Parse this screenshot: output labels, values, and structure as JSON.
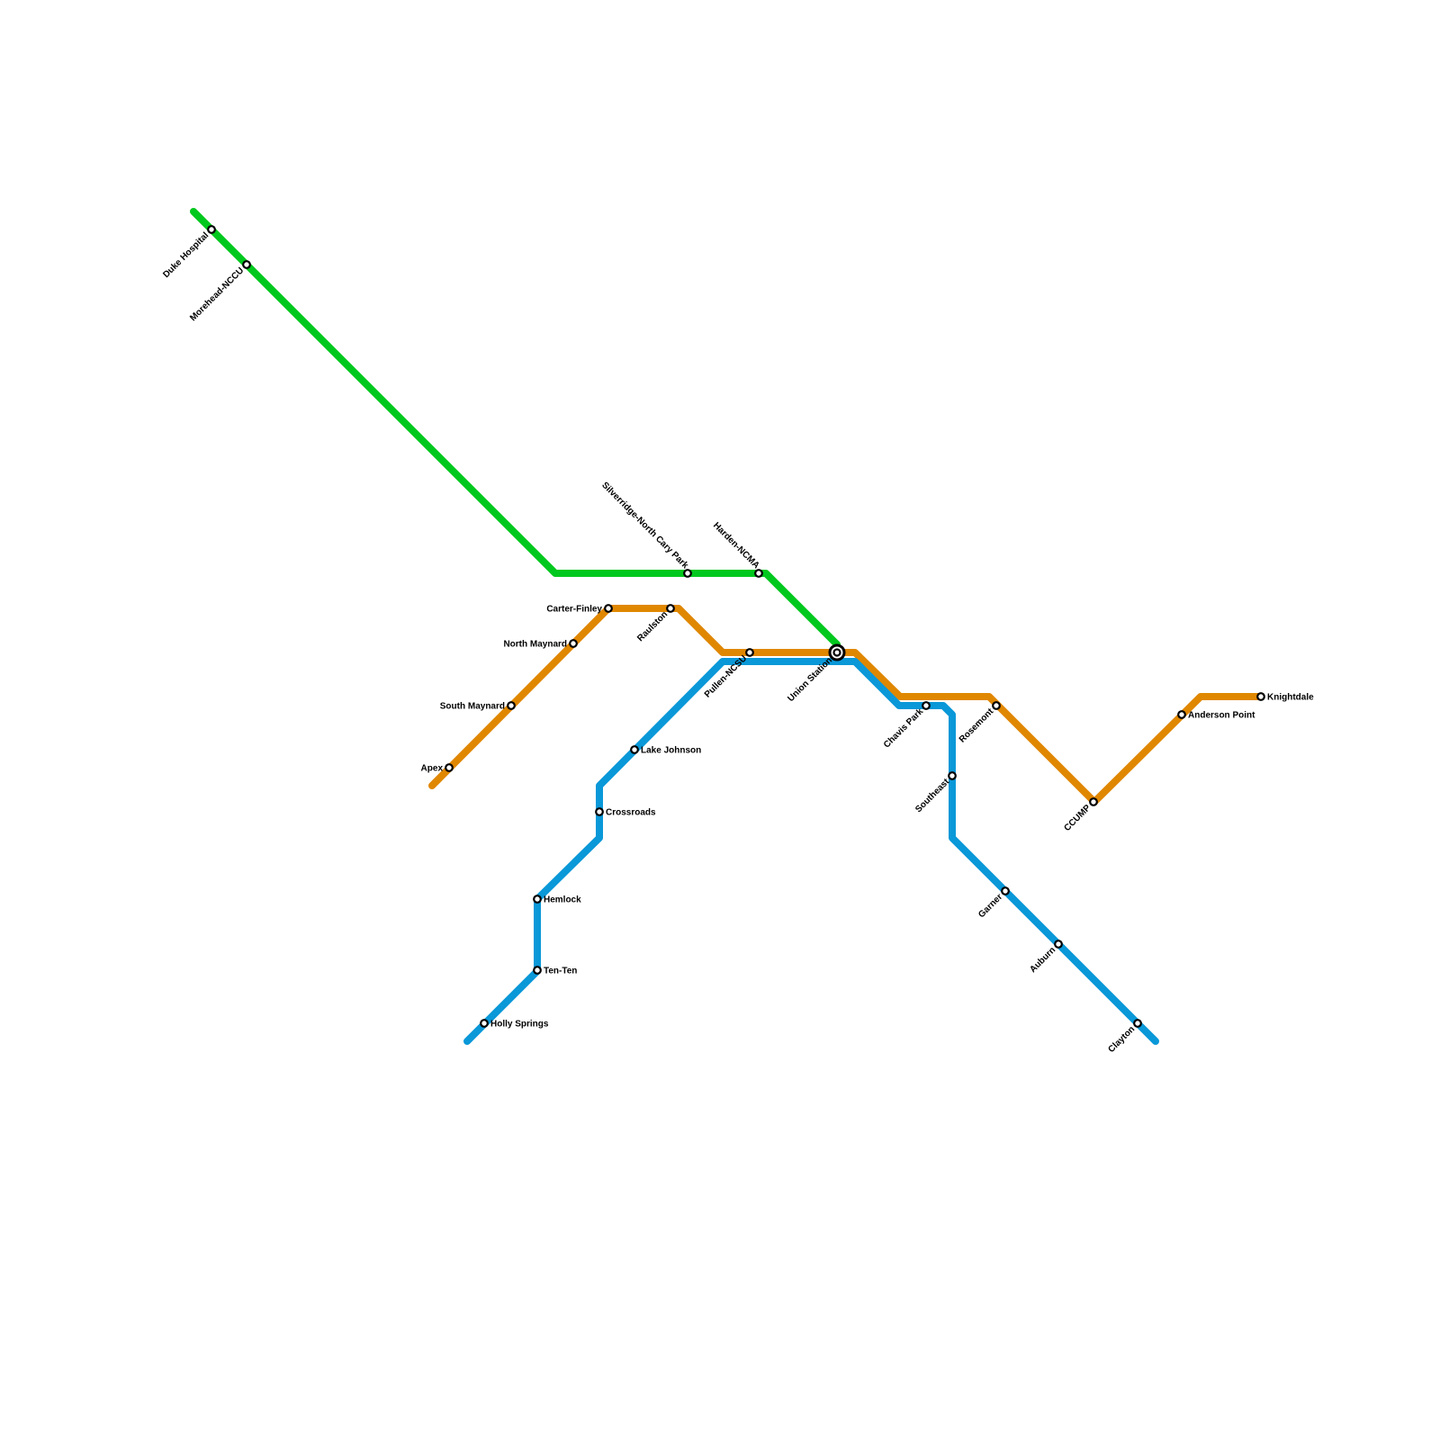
{
  "lines": [
    {
      "id": "green",
      "color": "#00c81e",
      "stations": [
        "Duke Hospital",
        "Morehead-NCCU",
        "Silverridge-North Cary Park",
        "Harden-NCMA",
        "Union Station"
      ]
    },
    {
      "id": "orange",
      "color": "#e08700",
      "stations": [
        "Apex",
        "South Maynard",
        "North Maynard",
        "Carter-Finley",
        "Raulston",
        "Pullen-NCSU",
        "Union Station",
        "Rosemont",
        "CCUMP",
        "Anderson Point",
        "Knightdale"
      ]
    },
    {
      "id": "blue",
      "color": "#0a98d8",
      "stations": [
        "Holly Springs",
        "Ten-Ten",
        "Hemlock",
        "Crossroads",
        "Lake Johnson",
        "Union Station",
        "Chavis Park",
        "Southeast",
        "Garner",
        "Auburn",
        "Clayton"
      ]
    }
  ],
  "stations": [
    "Duke Hospital",
    "Morehead-NCCU",
    "Silverridge-North Cary Park",
    "Harden-NCMA",
    "Union Station",
    "Apex",
    "South Maynard",
    "North Maynard",
    "Carter-Finley",
    "Raulston",
    "Pullen-NCSU",
    "Rosemont",
    "CCUMP",
    "Anderson Point",
    "Knightdale",
    "Holly Springs",
    "Ten-Ten",
    "Hemlock",
    "Crossroads",
    "Lake Johnson",
    "Chavis Park",
    "Southeast",
    "Garner",
    "Auburn",
    "Clayton"
  ],
  "interchange": "Union Station"
}
